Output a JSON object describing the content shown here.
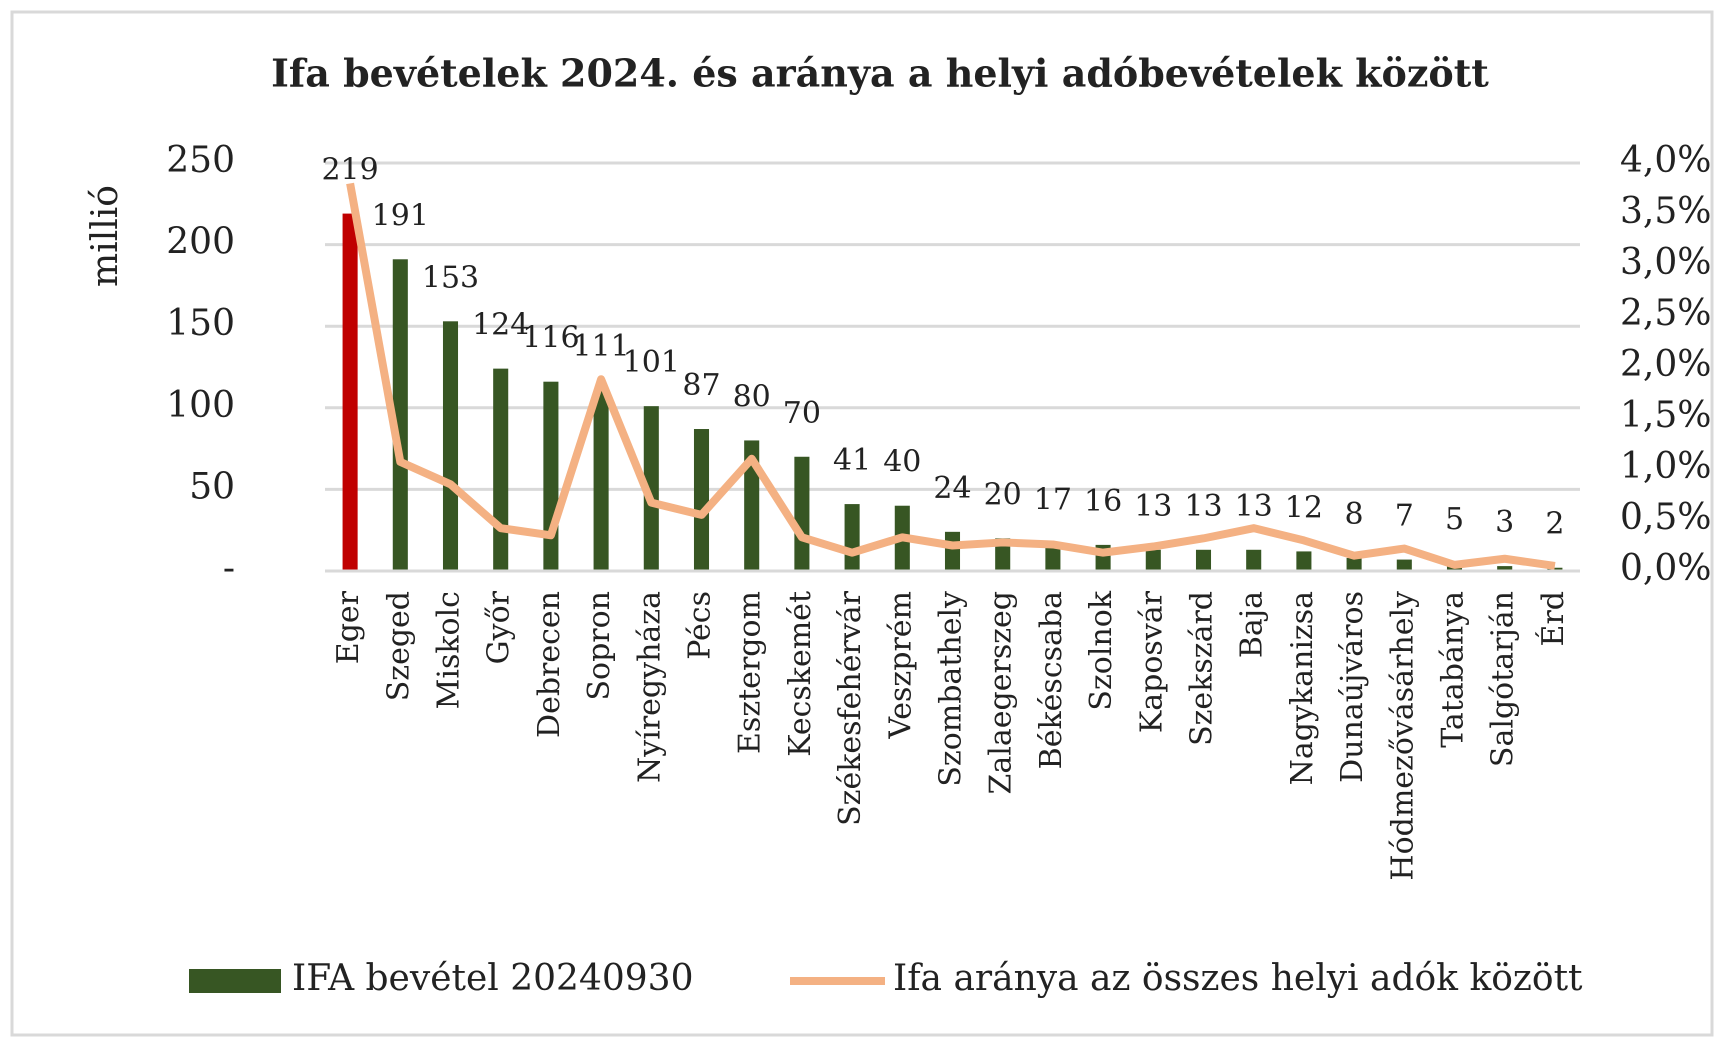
{
  "chart_data": {
    "type": "bar_line",
    "title": "Ifa bevételek 2024. és aránya a helyi adóbevételek között",
    "y_label": "millió",
    "categories": [
      "Eger",
      "Szeged",
      "Miskolc",
      "Győr",
      "Debrecen",
      "Sopron",
      "Nyíregyháza",
      "Pécs",
      "Esztergom",
      "Kecskemét",
      "Székesfehérvár",
      "Veszprém",
      "Szombathely",
      "Zalaegerszeg",
      "Békéscsaba",
      "Szolnok",
      "Kaposvár",
      "Szekszárd",
      "Baja",
      "Nagykanizsa",
      "Dunaújváros",
      "Hódmezővásárhely",
      "Tatabánya",
      "Salgótarján",
      "Érd"
    ],
    "series": [
      {
        "name": "IFA bevétel 20240930",
        "type": "bar",
        "color": "#375623",
        "colors": [
          "#c00000",
          "#375623",
          "#375623",
          "#375623",
          "#375623",
          "#375623",
          "#375623",
          "#375623",
          "#375623",
          "#375623",
          "#375623",
          "#375623",
          "#375623",
          "#375623",
          "#375623",
          "#375623",
          "#375623",
          "#375623",
          "#375623",
          "#375623",
          "#375623",
          "#375623",
          "#375623",
          "#375623",
          "#375623"
        ],
        "values": [
          219,
          191,
          153,
          124,
          116,
          111,
          101,
          87,
          80,
          70,
          41,
          40,
          24,
          20,
          17,
          16,
          13,
          13,
          13,
          12,
          8,
          7,
          5,
          3,
          2
        ]
      },
      {
        "name": "Ifa aránya az összes helyi adók között",
        "type": "line",
        "axis": "y2",
        "color": "#f4b183",
        "values": [
          3.8,
          1.07,
          0.85,
          0.42,
          0.35,
          1.88,
          0.67,
          0.55,
          1.1,
          0.33,
          0.18,
          0.33,
          0.25,
          0.28,
          0.26,
          0.18,
          0.24,
          0.32,
          0.42,
          0.3,
          0.15,
          0.22,
          0.06,
          0.12,
          0.05
        ]
      }
    ],
    "ylim": [
      0,
      250
    ],
    "yticks": [
      {
        "value": 0,
        "label": "-"
      },
      50,
      100,
      150,
      200,
      250
    ],
    "y2lim": [
      0,
      4
    ],
    "y2ticks": [
      {
        "value": 0,
        "label": "0,0%"
      },
      {
        "value": 0.5,
        "label": "0,5%"
      },
      {
        "value": 1,
        "label": "1,0%"
      },
      {
        "value": 1.5,
        "label": "1,5%"
      },
      {
        "value": 2,
        "label": "2,0%"
      },
      {
        "value": 2.5,
        "label": "2,5%"
      },
      {
        "value": 3,
        "label": "3,0%"
      },
      {
        "value": 3.5,
        "label": "3,5%"
      },
      {
        "value": 4,
        "label": "4,0%"
      }
    ],
    "grid": true,
    "legend": "bottom"
  }
}
